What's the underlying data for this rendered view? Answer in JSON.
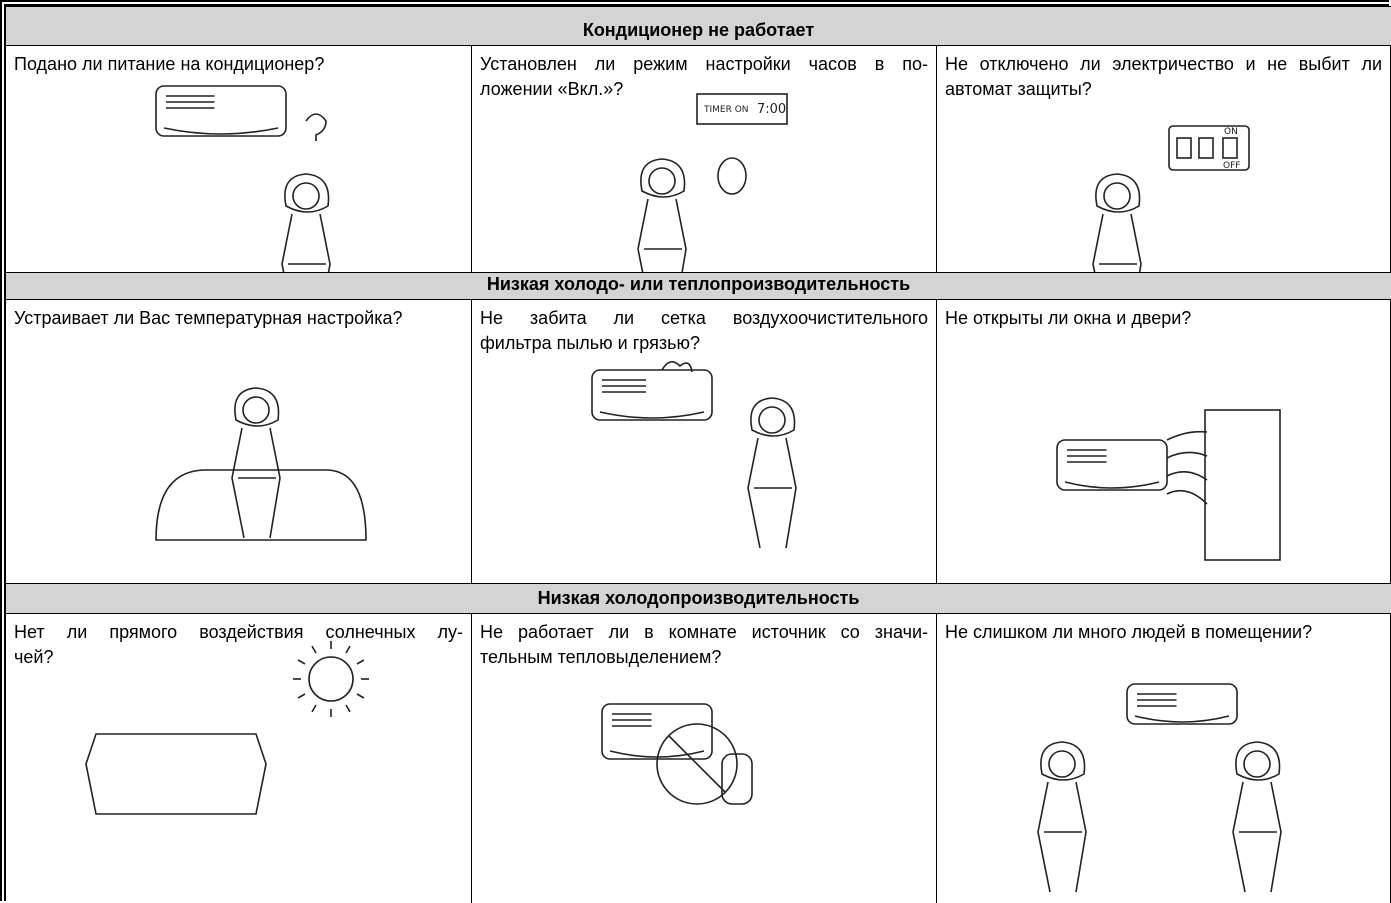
{
  "sections": [
    {
      "title": "Кондиционер не работает",
      "cells": [
        {
          "lines": [
            "Подано ли питание на кондиционер?"
          ]
        },
        {
          "lines": [
            "Установлен ли режим настройки часов в по-",
            "ложении «Вкл.»?"
          ],
          "timer_label": "TIMER ON",
          "timer_time": "7:00"
        },
        {
          "lines": [
            "Не отключено ли электричество и не выбит ли",
            "автомат защиты?"
          ],
          "switch_on": "ON",
          "switch_off": "OFF"
        }
      ]
    },
    {
      "title": "Низкая холодо- или теплопроизводительность",
      "cells": [
        {
          "lines": [
            "Устраивает ли Вас температурная настройка?"
          ]
        },
        {
          "lines": [
            "Не забита ли сетка воздухоочистительного",
            "фильтра пылью и грязью?"
          ]
        },
        {
          "lines": [
            "Не открыты ли окна и двери?"
          ]
        }
      ]
    },
    {
      "title": "Низкая холодопроизводительность",
      "cells": [
        {
          "lines": [
            "Нет ли прямого воздействия солнечных лу-",
            "чей?"
          ]
        },
        {
          "lines": [
            "Не работает ли в комнате источник со значи-",
            "тельным тепловыделением?"
          ]
        },
        {
          "lines": [
            "Не слишком ли много людей в помещении?"
          ]
        }
      ]
    }
  ]
}
